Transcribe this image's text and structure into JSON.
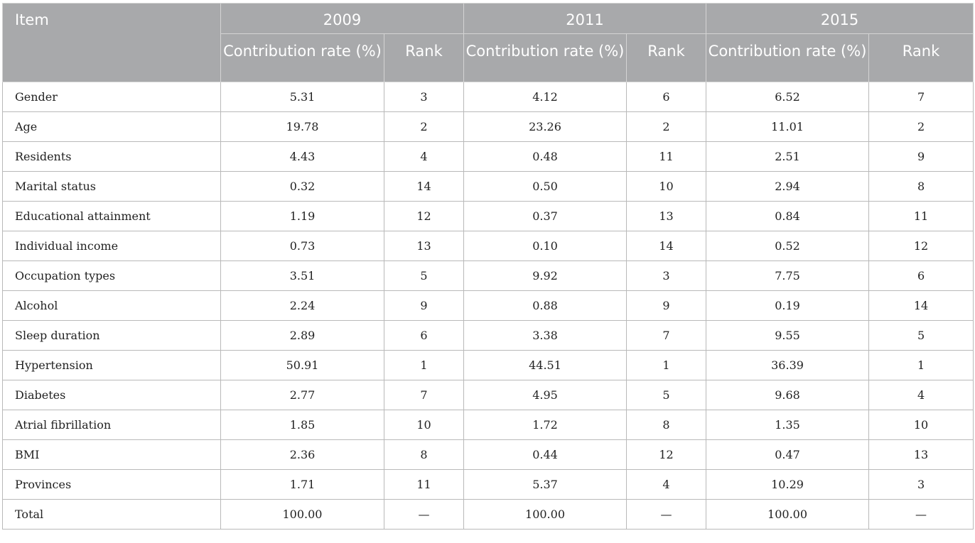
{
  "header": {
    "item": "Item",
    "years": [
      "2009",
      "2011",
      "2015"
    ],
    "contribution_label": "Contribution rate (%)",
    "rank_label": "Rank"
  },
  "rows": [
    {
      "item": "Gender",
      "c2009": "5.31",
      "r2009": "3",
      "c2011": "4.12",
      "r2011": "6",
      "c2015": "6.52",
      "r2015": "7"
    },
    {
      "item": "Age",
      "c2009": "19.78",
      "r2009": "2",
      "c2011": "23.26",
      "r2011": "2",
      "c2015": "11.01",
      "r2015": "2"
    },
    {
      "item": "Residents",
      "c2009": "4.43",
      "r2009": "4",
      "c2011": "0.48",
      "r2011": "11",
      "c2015": "2.51",
      "r2015": "9"
    },
    {
      "item": "Marital status",
      "c2009": "0.32",
      "r2009": "14",
      "c2011": "0.50",
      "r2011": "10",
      "c2015": "2.94",
      "r2015": "8"
    },
    {
      "item": "Educational attainment",
      "c2009": "1.19",
      "r2009": "12",
      "c2011": "0.37",
      "r2011": "13",
      "c2015": "0.84",
      "r2015": "11"
    },
    {
      "item": "Individual income",
      "c2009": "0.73",
      "r2009": "13",
      "c2011": "0.10",
      "r2011": "14",
      "c2015": "0.52",
      "r2015": "12"
    },
    {
      "item": "Occupation types",
      "c2009": "3.51",
      "r2009": "5",
      "c2011": "9.92",
      "r2011": "3",
      "c2015": "7.75",
      "r2015": "6"
    },
    {
      "item": "Alcohol",
      "c2009": "2.24",
      "r2009": "9",
      "c2011": "0.88",
      "r2011": "9",
      "c2015": "0.19",
      "r2015": "14"
    },
    {
      "item": "Sleep duration",
      "c2009": "2.89",
      "r2009": "6",
      "c2011": "3.38",
      "r2011": "7",
      "c2015": "9.55",
      "r2015": "5"
    },
    {
      "item": "Hypertension",
      "c2009": "50.91",
      "r2009": "1",
      "c2011": "44.51",
      "r2011": "1",
      "c2015": "36.39",
      "r2015": "1"
    },
    {
      "item": "Diabetes",
      "c2009": "2.77",
      "r2009": "7",
      "c2011": "4.95",
      "r2011": "5",
      "c2015": "9.68",
      "r2015": "4"
    },
    {
      "item": "Atrial fibrillation",
      "c2009": "1.85",
      "r2009": "10",
      "c2011": "1.72",
      "r2011": "8",
      "c2015": "1.35",
      "r2015": "10"
    },
    {
      "item": "BMI",
      "c2009": "2.36",
      "r2009": "8",
      "c2011": "0.44",
      "r2011": "12",
      "c2015": "0.47",
      "r2015": "13"
    },
    {
      "item": "Provinces",
      "c2009": "1.71",
      "r2009": "11",
      "c2011": "5.37",
      "r2011": "4",
      "c2015": "10.29",
      "r2015": "3"
    },
    {
      "item": "Total",
      "c2009": "100.00",
      "r2009": "—",
      "c2011": "100.00",
      "r2011": "—",
      "c2015": "100.00",
      "r2015": "—"
    }
  ]
}
